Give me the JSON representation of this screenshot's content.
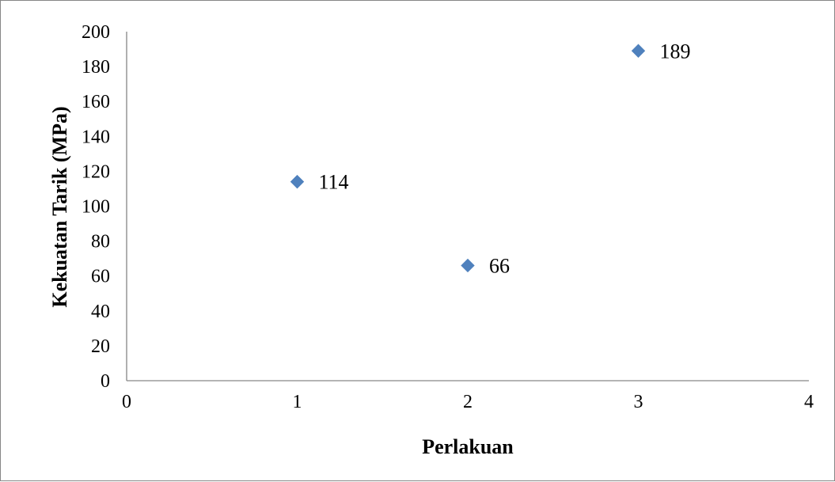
{
  "chart_data": {
    "type": "scatter",
    "title": "",
    "xlabel": "Perlakuan",
    "ylabel": "Kekuatan Tarik (MPa)",
    "xlim": [
      0,
      4
    ],
    "ylim": [
      0,
      200
    ],
    "xticks": [
      0,
      1,
      2,
      3,
      4
    ],
    "yticks": [
      0,
      20,
      40,
      60,
      80,
      100,
      120,
      140,
      160,
      180,
      200
    ],
    "grid": false,
    "legend": "none",
    "marker": "diamond",
    "series": [
      {
        "color": "#4F81BD",
        "points": [
          {
            "x": 1,
            "y": 114,
            "label": "114"
          },
          {
            "x": 2,
            "y": 66,
            "label": "66"
          },
          {
            "x": 3,
            "y": 189,
            "label": "189"
          }
        ]
      }
    ]
  }
}
